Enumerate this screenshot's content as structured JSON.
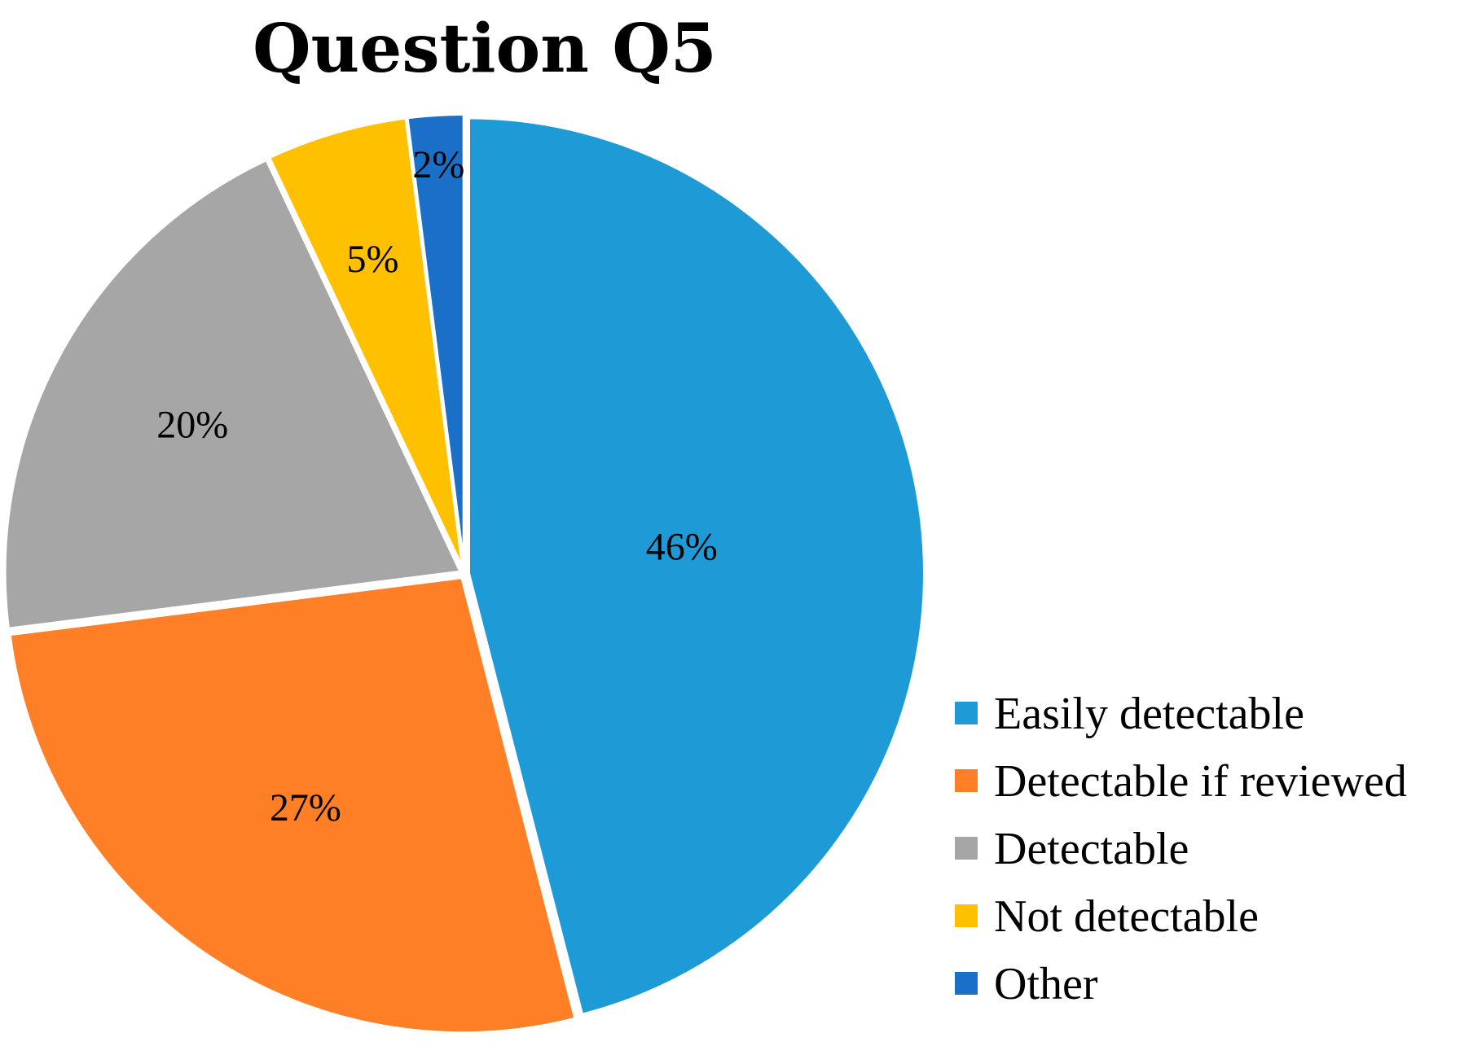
{
  "chart_data": {
    "type": "pie",
    "title": "Question Q5",
    "legend_position": "bottom-right",
    "slices": [
      {
        "name": "Easily detectable",
        "value": 46,
        "label": "46%",
        "color": "#1E9BD7"
      },
      {
        "name": "Detectable if reviewed",
        "value": 27,
        "label": "27%",
        "color": "#FF7F27"
      },
      {
        "name": "Detectable",
        "value": 20,
        "label": "20%",
        "color": "#A6A6A6"
      },
      {
        "name": "Not detectable",
        "value": 5,
        "label": "5%",
        "color": "#FFC000"
      },
      {
        "name": "Other",
        "value": 2,
        "label": "2%",
        "color": "#1A6FC7"
      }
    ]
  }
}
